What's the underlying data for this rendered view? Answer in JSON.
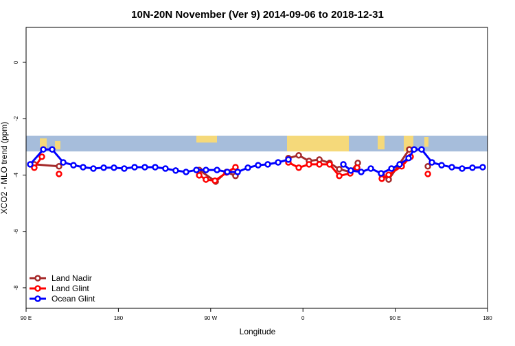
{
  "chart_data": {
    "type": "line",
    "title": "10N-20N November (Ver 9)   2014-09-06 to 2018-12-31",
    "x_label": "Longitude",
    "y_label": "XCO2 - MLO trend (ppm)",
    "xlim": [
      90,
      540
    ],
    "ylim": [
      -8.73,
      1.24
    ],
    "xticks": [
      {
        "value": 90,
        "label": "90 E"
      },
      180,
      {
        "value": 270,
        "label": "90 W"
      },
      {
        "value": 360,
        "label": "0"
      },
      {
        "value": 450,
        "label": "90 E"
      },
      {
        "value": 540,
        "label": "180"
      }
    ],
    "yticks": [
      0,
      -2,
      -4,
      -6,
      -8
    ],
    "legend": "bottom-left",
    "series": [
      {
        "name": "Land Nadir",
        "color": "#a52a2a",
        "x": [
          98.0,
          122.1,
          null,
          258.8,
          274.9,
          285.5,
          294.2,
          null,
          345.8,
          355.9,
          365.9,
          376.0,
          386.0,
          395.4,
          406.1,
          413.5,
          null,
          436.9,
          443.6,
          463.7,
          null,
          481.8
        ],
        "values": [
          -3.62,
          -3.69,
          null,
          -3.82,
          -4.23,
          -3.89,
          -4.03,
          null,
          -3.4,
          -3.3,
          -3.5,
          -3.45,
          -3.57,
          -3.79,
          -3.89,
          -3.57,
          null,
          -3.99,
          -4.16,
          -3.09,
          null,
          -3.69
        ]
      },
      {
        "name": "Land Glint",
        "color": "#ff0000",
        "x": [
          98.0,
          105.4,
          null,
          122.1,
          null,
          258.8,
          265.4,
          274.2,
          285.5,
          294.2,
          null,
          345.8,
          355.9,
          365.9,
          376.0,
          386.0,
          395.4,
          406.1,
          412.8,
          null,
          436.9,
          443.6,
          456.3,
          465.0,
          null,
          481.8
        ],
        "values": [
          -3.74,
          -3.35,
          null,
          -3.96,
          null,
          -4.01,
          -4.16,
          -4.2,
          -3.91,
          -3.72,
          null,
          -3.55,
          -3.74,
          -3.62,
          -3.62,
          -3.62,
          -4.03,
          -3.94,
          -3.74,
          null,
          -4.13,
          -3.99,
          -3.69,
          -3.35,
          null,
          -3.96
        ]
      },
      {
        "name": "Ocean Glint",
        "color": "#0000ff",
        "x": [
          94.0,
          106.8,
          115.4,
          126.2,
          136.2,
          145.6,
          155.6,
          165.7,
          175.7,
          185.7,
          195.8,
          205.8,
          215.9,
          225.9,
          235.9,
          246.0,
          256.1,
          265.4,
          276.2,
          286.2,
          296.3,
          306.3,
          316.3,
          325.7,
          335.8,
          345.8,
          null,
          399.4,
          406.7,
          416.8,
          426.2,
          436.2,
          446.3,
          454.3,
          463.0,
          468.4,
          475.7,
          485.8,
          495.2,
          505.2,
          515.2,
          525.3,
          535.3
        ],
        "values": [
          -3.62,
          -3.09,
          -3.09,
          -3.55,
          -3.65,
          -3.72,
          -3.77,
          -3.74,
          -3.74,
          -3.77,
          -3.72,
          -3.72,
          -3.72,
          -3.77,
          -3.84,
          -3.89,
          -3.82,
          -3.82,
          -3.82,
          -3.89,
          -3.89,
          -3.74,
          -3.65,
          -3.62,
          -3.55,
          -3.45,
          null,
          -3.62,
          -3.84,
          -3.89,
          -3.77,
          -3.94,
          -3.77,
          -3.62,
          -3.4,
          -3.09,
          -3.09,
          -3.55,
          -3.65,
          -3.72,
          -3.77,
          -3.74,
          -3.72
        ]
      }
    ]
  }
}
